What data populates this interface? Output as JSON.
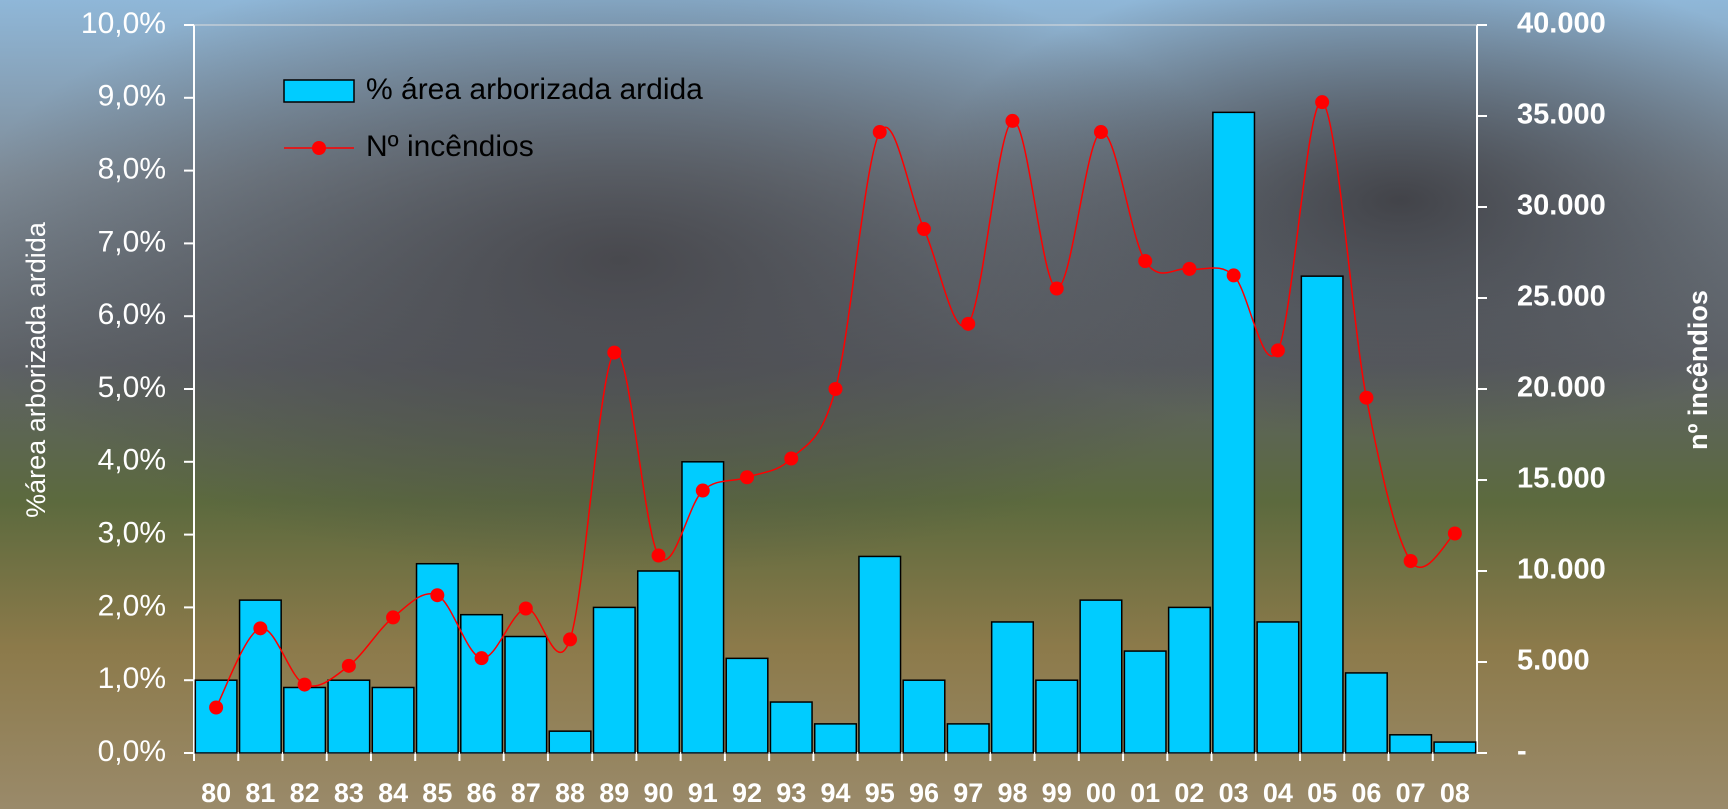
{
  "chart_data": {
    "type": "bar-line",
    "categories": [
      "80",
      "81",
      "82",
      "83",
      "84",
      "85",
      "86",
      "87",
      "88",
      "89",
      "90",
      "91",
      "92",
      "93",
      "94",
      "95",
      "96",
      "97",
      "98",
      "99",
      "00",
      "01",
      "02",
      "03",
      "04",
      "05",
      "06",
      "07",
      "08"
    ],
    "series": [
      {
        "name": "% área arborizada ardida",
        "type": "bar",
        "color": "#00ccff",
        "values": [
          1.0,
          2.1,
          0.9,
          1.0,
          0.9,
          2.6,
          1.9,
          1.6,
          0.3,
          2.0,
          2.5,
          4.0,
          1.3,
          0.7,
          0.4,
          2.7,
          1.0,
          0.4,
          1.8,
          1.0,
          2.1,
          1.4,
          2.0,
          8.8,
          1.8,
          6.55,
          1.1,
          0.25,
          0.15
        ]
      },
      {
        "name": "Nº incêndios",
        "type": "line",
        "axis": "y2",
        "color": "#ff0000",
        "values": [
          2500,
          6850,
          3760,
          4790,
          7450,
          8670,
          5210,
          7940,
          6240,
          22000,
          10850,
          14420,
          15150,
          16180,
          20000,
          34120,
          28790,
          23580,
          34730,
          25520,
          34120,
          27030,
          26600,
          26240,
          22120,
          35760,
          19520,
          10550,
          12060
        ]
      }
    ],
    "ylabel": "%área arborizada ardida",
    "y2label": "nº incêndios",
    "ylim": [
      0,
      10
    ],
    "yticks": [
      {
        "value": 0,
        "label": "0,0%"
      },
      {
        "value": 1,
        "label": "1,0%"
      },
      {
        "value": 2,
        "label": "2,0%"
      },
      {
        "value": 3,
        "label": "3,0%"
      },
      {
        "value": 4,
        "label": "4,0%"
      },
      {
        "value": 5,
        "label": "5,0%"
      },
      {
        "value": 6,
        "label": "6,0%"
      },
      {
        "value": 7,
        "label": "7,0%"
      },
      {
        "value": 8,
        "label": "8,0%"
      },
      {
        "value": 9,
        "label": "9,0%"
      },
      {
        "value": 10,
        "label": "10,0%"
      }
    ],
    "y2lim": [
      0,
      40000
    ],
    "y2ticks": [
      {
        "value": 0,
        "label": "-"
      },
      {
        "value": 5000,
        "label": "5.000"
      },
      {
        "value": 10000,
        "label": "10.000"
      },
      {
        "value": 15000,
        "label": "15.000"
      },
      {
        "value": 20000,
        "label": "20.000"
      },
      {
        "value": 25000,
        "label": "25.000"
      },
      {
        "value": 30000,
        "label": "30.000"
      },
      {
        "value": 35000,
        "label": "35.000"
      },
      {
        "value": 40000,
        "label": "40.000"
      }
    ],
    "legend": "upper-left",
    "grid": false
  }
}
